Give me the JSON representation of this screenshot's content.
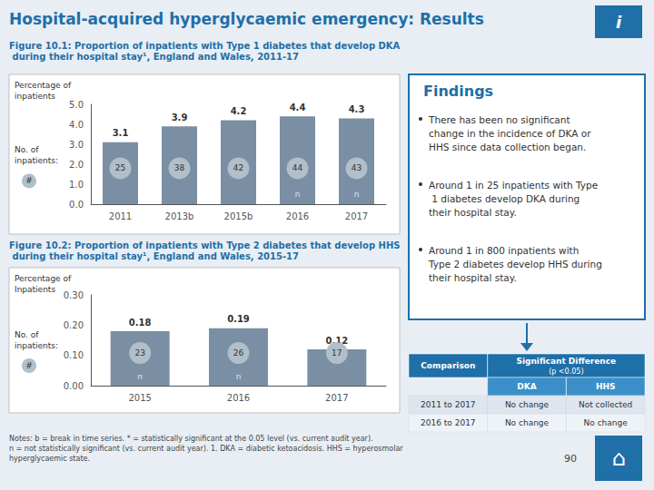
{
  "title": "Hospital-acquired hyperglycaemic emergency: Results",
  "info_icon": "i",
  "home_icon": "⌂",
  "chart_data": [
    {
      "type": "bar",
      "title": "Figure 10.1: Proportion of inpatients with Type 1 diabetes that develop DKA during their hospital stay¹, England and Wales, 2011-17",
      "categories": [
        "2011",
        "2013b",
        "2015b",
        "2016",
        "2017"
      ],
      "values": [
        3.1,
        3.9,
        4.2,
        4.4,
        4.3
      ],
      "color": "#7a8fa4",
      "ylabel": "Percentage of\ninpatients",
      "ylim": [
        0.0,
        5.0
      ],
      "yticks": [
        {
          "value": 0.0,
          "label": "0.0"
        },
        {
          "value": 1.0,
          "label": "1.0"
        },
        {
          "value": 2.0,
          "label": "2.0"
        },
        {
          "value": 3.0,
          "label": "3.0"
        },
        {
          "value": 4.0,
          "label": "4.0"
        },
        {
          "value": 5.0,
          "label": "5.0"
        }
      ],
      "grid": false,
      "data_labels": true,
      "counts": [
        25,
        38,
        42,
        44,
        43
      ],
      "counts_label": "No. of\ninpatients:",
      "counts_symbol": "#",
      "marker_labels": [
        null,
        null,
        null,
        "n",
        "n"
      ]
    },
    {
      "type": "bar",
      "title": "Figure 10.2: Proportion of inpatients with Type 2 diabetes that develop HHS during their hospital stay¹, England and Wales, 2015-17",
      "categories": [
        "2015",
        "2016",
        "2017"
      ],
      "values": [
        0.18,
        0.19,
        0.12
      ],
      "color": "#7a8fa4",
      "ylabel": "Percentage of\nInpatients",
      "ylim": [
        0.0,
        0.3
      ],
      "yticks": [
        {
          "value": 0.0,
          "label": "0.00"
        },
        {
          "value": 0.1,
          "label": "0.10"
        },
        {
          "value": 0.2,
          "label": "0.20"
        },
        {
          "value": 0.3,
          "label": "0.30"
        }
      ],
      "grid": false,
      "data_labels": true,
      "counts": [
        23,
        26,
        17
      ],
      "counts_label": "No. of\ninpatients:",
      "counts_symbol": "#",
      "marker_labels": [
        "n",
        "n",
        null
      ]
    }
  ],
  "findings": {
    "title": "Findings",
    "items": [
      "There has been no significant change in the incidence of DKA or HHS since data collection began.",
      "Around 1 in 25 inpatients with Type 1 diabetes develop DKA during their hospital stay.",
      "Around 1 in 800 inpatients with Type 2 diabetes develop HHS during their hospital stay."
    ]
  },
  "table": {
    "header": [
      "Comparison",
      "Significant Difference",
      "(p <0.05)"
    ],
    "columns": [
      "DKA",
      "HHS"
    ],
    "rows": [
      [
        "2011 to 2017",
        "No change",
        "Not collected"
      ],
      [
        "2016 to 2017",
        "No change",
        "No change"
      ]
    ]
  },
  "notes": "Notes: b = break in time series. * = statistically significant at the 0.05 level (vs. current audit year).\nn = not statistically significant (vs. current audit year). 1. DKA = diabetic ketoacidosis. HHS = hyperosmolar hyperglycaemic state.",
  "page_number": "90"
}
